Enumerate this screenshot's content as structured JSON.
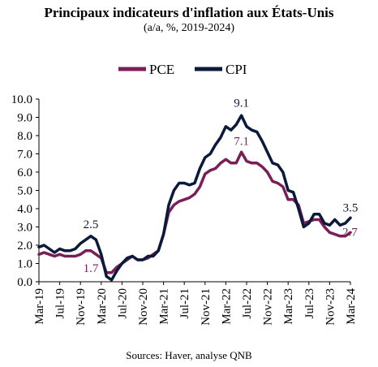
{
  "chart_data": {
    "type": "line",
    "title": "Principaux indicateurs d'inflation aux États-Unis",
    "subtitle": "(a/a, %, 2019-2024)",
    "source": "Sources: Haver, analyse QNB",
    "xlabel": "",
    "ylabel": "",
    "ylim": [
      0,
      10
    ],
    "yticks": [
      "0.0",
      "1.0",
      "2.0",
      "3.0",
      "4.0",
      "5.0",
      "6.0",
      "7.0",
      "8.0",
      "9.0",
      "10.0"
    ],
    "xticks": [
      "Mar-19",
      "Jul-19",
      "Nov-19",
      "Mar-20",
      "Jul-20",
      "Nov-20",
      "Mar-21",
      "Jul-21",
      "Nov-21",
      "Mar-22",
      "Jul-22",
      "Nov-22",
      "Mar-23",
      "Jul-23",
      "Nov-23",
      "Mar-24"
    ],
    "grid": false,
    "legend_position": "top",
    "x": [
      "Mar-19",
      "Apr-19",
      "May-19",
      "Jun-19",
      "Jul-19",
      "Aug-19",
      "Sep-19",
      "Oct-19",
      "Nov-19",
      "Dec-19",
      "Jan-20",
      "Feb-20",
      "Mar-20",
      "Apr-20",
      "May-20",
      "Jun-20",
      "Jul-20",
      "Aug-20",
      "Sep-20",
      "Oct-20",
      "Nov-20",
      "Dec-20",
      "Jan-21",
      "Feb-21",
      "Mar-21",
      "Apr-21",
      "May-21",
      "Jun-21",
      "Jul-21",
      "Aug-21",
      "Sep-21",
      "Oct-21",
      "Nov-21",
      "Dec-21",
      "Jan-22",
      "Feb-22",
      "Mar-22",
      "Apr-22",
      "May-22",
      "Jun-22",
      "Jul-22",
      "Aug-22",
      "Sep-22",
      "Oct-22",
      "Nov-22",
      "Dec-22",
      "Jan-23",
      "Feb-23",
      "Mar-23",
      "Apr-23",
      "May-23",
      "Jun-23",
      "Jul-23",
      "Aug-23",
      "Sep-23",
      "Oct-23",
      "Nov-23",
      "Dec-23",
      "Jan-24",
      "Feb-24",
      "Mar-24"
    ],
    "series": [
      {
        "name": "PCE",
        "color": "#7a1e57",
        "values": [
          1.5,
          1.6,
          1.5,
          1.4,
          1.5,
          1.4,
          1.4,
          1.4,
          1.5,
          1.7,
          1.7,
          1.5,
          1.3,
          0.5,
          0.5,
          0.8,
          1.0,
          1.2,
          1.4,
          1.2,
          1.2,
          1.3,
          1.5,
          1.7,
          2.6,
          3.8,
          4.2,
          4.4,
          4.5,
          4.6,
          4.8,
          5.2,
          5.9,
          6.1,
          6.2,
          6.5,
          6.7,
          6.5,
          6.5,
          7.1,
          6.6,
          6.5,
          6.5,
          6.3,
          6.0,
          5.5,
          5.4,
          5.2,
          4.5,
          4.5,
          4.2,
          3.2,
          3.3,
          3.4,
          3.4,
          3.0,
          2.7,
          2.6,
          2.5,
          2.5,
          2.7
        ]
      },
      {
        "name": "CPI",
        "color": "#0b1a3a",
        "values": [
          1.9,
          2.0,
          1.8,
          1.6,
          1.8,
          1.7,
          1.7,
          1.8,
          2.1,
          2.3,
          2.5,
          2.3,
          1.5,
          0.3,
          0.1,
          0.6,
          1.0,
          1.3,
          1.4,
          1.2,
          1.2,
          1.4,
          1.4,
          1.7,
          2.6,
          4.2,
          5.0,
          5.4,
          5.4,
          5.3,
          5.4,
          6.2,
          6.8,
          7.0,
          7.5,
          7.9,
          8.5,
          8.3,
          8.6,
          9.1,
          8.5,
          8.3,
          8.2,
          7.7,
          7.1,
          6.5,
          6.4,
          6.0,
          5.0,
          4.9,
          4.0,
          3.0,
          3.2,
          3.7,
          3.7,
          3.2,
          3.1,
          3.4,
          3.1,
          3.2,
          3.5
        ]
      }
    ],
    "annotations": [
      {
        "text": "2.5",
        "series": "CPI",
        "x": "Jan-20",
        "value": 2.5
      },
      {
        "text": "1.7",
        "series": "PCE",
        "x": "Jan-20",
        "value": 1.7
      },
      {
        "text": "9.1",
        "series": "CPI",
        "x": "Jun-22",
        "value": 9.1
      },
      {
        "text": "7.1",
        "series": "PCE",
        "x": "Jun-22",
        "value": 7.1
      },
      {
        "text": "3.5",
        "series": "CPI",
        "x": "Mar-24",
        "value": 3.5
      },
      {
        "text": "2.7",
        "series": "PCE",
        "x": "Mar-24",
        "value": 2.7
      }
    ]
  }
}
